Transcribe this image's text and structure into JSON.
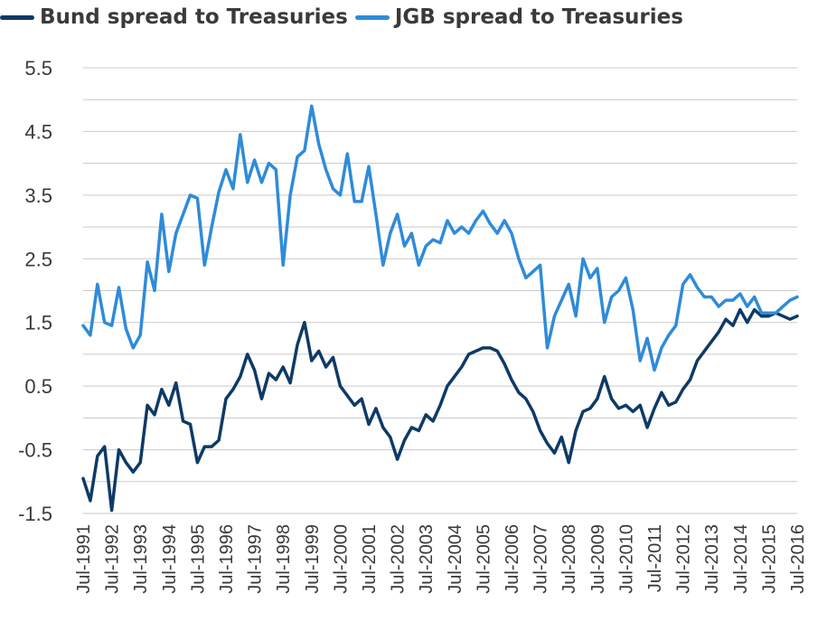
{
  "chart_data": {
    "type": "line",
    "title": "",
    "xlabel": "",
    "ylabel": "",
    "ylim": [
      -1.5,
      5.5
    ],
    "yticks": [
      "5.5",
      "4.5",
      "3.5",
      "2.5",
      "1.5",
      "0.5",
      "-0.5",
      "-1.5"
    ],
    "xticks": [
      "Jul-1991",
      "Jul-1992",
      "Jul-1993",
      "Jul-1994",
      "Jul-1995",
      "Jul-1996",
      "Jul-1997",
      "Jul-1998",
      "Jul-1999",
      "Jul-2000",
      "Jul-2001",
      "Jul-2002",
      "Jul-2003",
      "Jul-2004",
      "Jul-2005",
      "Jul-2006",
      "Jul-2007",
      "Jul-2008",
      "Jul-2009",
      "Jul-2010",
      "Jul-2011",
      "Jul-2012",
      "Jul-2013",
      "Jul-2014",
      "Jul-2015",
      "Jul-2016"
    ],
    "grid": "horizontal",
    "legend_position": "top",
    "x_start": "Jul-1991",
    "x_end": "Jul-2016",
    "series": [
      {
        "name": "Bund spread to Treasuries",
        "color": "#0e3a66",
        "points": [
          [
            "Jul-1991",
            -0.95
          ],
          [
            "Oct-1991",
            -1.3
          ],
          [
            "Jan-1992",
            -0.6
          ],
          [
            "Apr-1992",
            -0.45
          ],
          [
            "Jul-1992",
            -1.45
          ],
          [
            "Oct-1992",
            -0.5
          ],
          [
            "Jan-1993",
            -0.7
          ],
          [
            "Apr-1993",
            -0.85
          ],
          [
            "Jul-1993",
            -0.7
          ],
          [
            "Oct-1993",
            0.2
          ],
          [
            "Jan-1994",
            0.05
          ],
          [
            "Apr-1994",
            0.45
          ],
          [
            "Jul-1994",
            0.2
          ],
          [
            "Oct-1994",
            0.55
          ],
          [
            "Jan-1995",
            -0.05
          ],
          [
            "Apr-1995",
            -0.1
          ],
          [
            "Jul-1995",
            -0.7
          ],
          [
            "Oct-1995",
            -0.45
          ],
          [
            "Jan-1996",
            -0.45
          ],
          [
            "Apr-1996",
            -0.35
          ],
          [
            "Jul-1996",
            0.3
          ],
          [
            "Oct-1996",
            0.45
          ],
          [
            "Jan-1997",
            0.65
          ],
          [
            "Apr-1997",
            1.0
          ],
          [
            "Jul-1997",
            0.75
          ],
          [
            "Oct-1997",
            0.3
          ],
          [
            "Jan-1998",
            0.7
          ],
          [
            "Apr-1998",
            0.6
          ],
          [
            "Jul-1998",
            0.8
          ],
          [
            "Oct-1998",
            0.55
          ],
          [
            "Jan-1999",
            1.15
          ],
          [
            "Apr-1999",
            1.5
          ],
          [
            "Jul-1999",
            0.9
          ],
          [
            "Oct-1999",
            1.05
          ],
          [
            "Jan-2000",
            0.8
          ],
          [
            "Apr-2000",
            0.95
          ],
          [
            "Jul-2000",
            0.5
          ],
          [
            "Oct-2000",
            0.35
          ],
          [
            "Jan-2001",
            0.2
          ],
          [
            "Apr-2001",
            0.3
          ],
          [
            "Jul-2001",
            -0.1
          ],
          [
            "Oct-2001",
            0.15
          ],
          [
            "Jan-2002",
            -0.15
          ],
          [
            "Apr-2002",
            -0.3
          ],
          [
            "Jul-2002",
            -0.65
          ],
          [
            "Oct-2002",
            -0.35
          ],
          [
            "Jan-2003",
            -0.15
          ],
          [
            "Apr-2003",
            -0.2
          ],
          [
            "Jul-2003",
            0.05
          ],
          [
            "Oct-2003",
            -0.05
          ],
          [
            "Jan-2004",
            0.2
          ],
          [
            "Apr-2004",
            0.5
          ],
          [
            "Jul-2004",
            0.65
          ],
          [
            "Oct-2004",
            0.8
          ],
          [
            "Jan-2005",
            1.0
          ],
          [
            "Apr-2005",
            1.05
          ],
          [
            "Jul-2005",
            1.1
          ],
          [
            "Oct-2005",
            1.1
          ],
          [
            "Jan-2006",
            1.05
          ],
          [
            "Apr-2006",
            0.85
          ],
          [
            "Jul-2006",
            0.6
          ],
          [
            "Oct-2006",
            0.4
          ],
          [
            "Jan-2007",
            0.3
          ],
          [
            "Apr-2007",
            0.1
          ],
          [
            "Jul-2007",
            -0.2
          ],
          [
            "Oct-2007",
            -0.4
          ],
          [
            "Jan-2008",
            -0.55
          ],
          [
            "Apr-2008",
            -0.3
          ],
          [
            "Jul-2008",
            -0.7
          ],
          [
            "Oct-2008",
            -0.2
          ],
          [
            "Jan-2009",
            0.1
          ],
          [
            "Apr-2009",
            0.15
          ],
          [
            "Jul-2009",
            0.3
          ],
          [
            "Oct-2009",
            0.65
          ],
          [
            "Jan-2010",
            0.3
          ],
          [
            "Apr-2010",
            0.15
          ],
          [
            "Jul-2010",
            0.2
          ],
          [
            "Oct-2010",
            0.1
          ],
          [
            "Jan-2011",
            0.2
          ],
          [
            "Apr-2011",
            -0.15
          ],
          [
            "Jul-2011",
            0.15
          ],
          [
            "Oct-2011",
            0.4
          ],
          [
            "Jan-2012",
            0.2
          ],
          [
            "Apr-2012",
            0.25
          ],
          [
            "Jul-2012",
            0.45
          ],
          [
            "Oct-2012",
            0.6
          ],
          [
            "Jan-2013",
            0.9
          ],
          [
            "Apr-2013",
            1.05
          ],
          [
            "Jul-2013",
            1.2
          ],
          [
            "Oct-2013",
            1.35
          ],
          [
            "Jan-2014",
            1.55
          ],
          [
            "Apr-2014",
            1.45
          ],
          [
            "Jul-2014",
            1.7
          ],
          [
            "Oct-2014",
            1.5
          ],
          [
            "Jan-2015",
            1.7
          ],
          [
            "Apr-2015",
            1.6
          ],
          [
            "Jul-2015",
            1.6
          ],
          [
            "Oct-2015",
            1.65
          ],
          [
            "Jan-2016",
            1.6
          ],
          [
            "Apr-2016",
            1.55
          ],
          [
            "Jul-2016",
            1.6
          ]
        ]
      },
      {
        "name": "JGB spread to Treasuries",
        "color": "#2f8bd9",
        "points": [
          [
            "Jul-1991",
            1.45
          ],
          [
            "Oct-1991",
            1.3
          ],
          [
            "Jan-1992",
            2.1
          ],
          [
            "Apr-1992",
            1.5
          ],
          [
            "Jul-1992",
            1.45
          ],
          [
            "Oct-1992",
            2.05
          ],
          [
            "Jan-1993",
            1.4
          ],
          [
            "Apr-1993",
            1.1
          ],
          [
            "Jul-1993",
            1.3
          ],
          [
            "Oct-1993",
            2.45
          ],
          [
            "Jan-1994",
            2.0
          ],
          [
            "Apr-1994",
            3.2
          ],
          [
            "Jul-1994",
            2.3
          ],
          [
            "Oct-1994",
            2.9
          ],
          [
            "Jan-1995",
            3.2
          ],
          [
            "Apr-1995",
            3.5
          ],
          [
            "Jul-1995",
            3.45
          ],
          [
            "Oct-1995",
            2.4
          ],
          [
            "Jan-1996",
            3.0
          ],
          [
            "Apr-1996",
            3.55
          ],
          [
            "Jul-1996",
            3.9
          ],
          [
            "Oct-1996",
            3.6
          ],
          [
            "Jan-1997",
            4.45
          ],
          [
            "Apr-1997",
            3.7
          ],
          [
            "Jul-1997",
            4.05
          ],
          [
            "Oct-1997",
            3.7
          ],
          [
            "Jan-1998",
            4.0
          ],
          [
            "Apr-1998",
            3.9
          ],
          [
            "Jul-1998",
            2.4
          ],
          [
            "Oct-1998",
            3.5
          ],
          [
            "Jan-1999",
            4.1
          ],
          [
            "Apr-1999",
            4.2
          ],
          [
            "Jul-1999",
            4.9
          ],
          [
            "Oct-1999",
            4.3
          ],
          [
            "Jan-2000",
            3.9
          ],
          [
            "Apr-2000",
            3.6
          ],
          [
            "Jul-2000",
            3.5
          ],
          [
            "Oct-2000",
            4.15
          ],
          [
            "Jan-2001",
            3.4
          ],
          [
            "Apr-2001",
            3.4
          ],
          [
            "Jul-2001",
            3.95
          ],
          [
            "Oct-2001",
            3.2
          ],
          [
            "Jan-2002",
            2.4
          ],
          [
            "Apr-2002",
            2.9
          ],
          [
            "Jul-2002",
            3.2
          ],
          [
            "Oct-2002",
            2.7
          ],
          [
            "Jan-2003",
            2.9
          ],
          [
            "Apr-2003",
            2.4
          ],
          [
            "Jul-2003",
            2.7
          ],
          [
            "Oct-2003",
            2.8
          ],
          [
            "Jan-2004",
            2.75
          ],
          [
            "Apr-2004",
            3.1
          ],
          [
            "Jul-2004",
            2.9
          ],
          [
            "Oct-2004",
            3.0
          ],
          [
            "Jan-2005",
            2.9
          ],
          [
            "Apr-2005",
            3.1
          ],
          [
            "Jul-2005",
            3.25
          ],
          [
            "Oct-2005",
            3.05
          ],
          [
            "Jan-2006",
            2.9
          ],
          [
            "Apr-2006",
            3.1
          ],
          [
            "Jul-2006",
            2.9
          ],
          [
            "Oct-2006",
            2.5
          ],
          [
            "Jan-2007",
            2.2
          ],
          [
            "Apr-2007",
            2.3
          ],
          [
            "Jul-2007",
            2.4
          ],
          [
            "Oct-2007",
            1.1
          ],
          [
            "Jan-2008",
            1.6
          ],
          [
            "Apr-2008",
            1.85
          ],
          [
            "Jul-2008",
            2.1
          ],
          [
            "Oct-2008",
            1.6
          ],
          [
            "Jan-2009",
            2.5
          ],
          [
            "Apr-2009",
            2.2
          ],
          [
            "Jul-2009",
            2.35
          ],
          [
            "Oct-2009",
            1.5
          ],
          [
            "Jan-2010",
            1.9
          ],
          [
            "Apr-2010",
            2.0
          ],
          [
            "Jul-2010",
            2.2
          ],
          [
            "Oct-2010",
            1.7
          ],
          [
            "Jan-2011",
            0.9
          ],
          [
            "Apr-2011",
            1.25
          ],
          [
            "Jul-2011",
            0.75
          ],
          [
            "Oct-2011",
            1.1
          ],
          [
            "Jan-2012",
            1.3
          ],
          [
            "Apr-2012",
            1.45
          ],
          [
            "Jul-2012",
            2.1
          ],
          [
            "Oct-2012",
            2.25
          ],
          [
            "Jan-2013",
            2.05
          ],
          [
            "Apr-2013",
            1.9
          ],
          [
            "Jul-2013",
            1.9
          ],
          [
            "Oct-2013",
            1.75
          ],
          [
            "Jan-2014",
            1.85
          ],
          [
            "Apr-2014",
            1.85
          ],
          [
            "Jul-2014",
            1.95
          ],
          [
            "Oct-2014",
            1.75
          ],
          [
            "Jan-2015",
            1.9
          ],
          [
            "Apr-2015",
            1.65
          ],
          [
            "Jul-2015",
            1.65
          ],
          [
            "Oct-2015",
            1.65
          ],
          [
            "Jan-2016",
            1.75
          ],
          [
            "Apr-2016",
            1.85
          ],
          [
            "Jul-2016",
            1.9
          ]
        ]
      }
    ]
  }
}
